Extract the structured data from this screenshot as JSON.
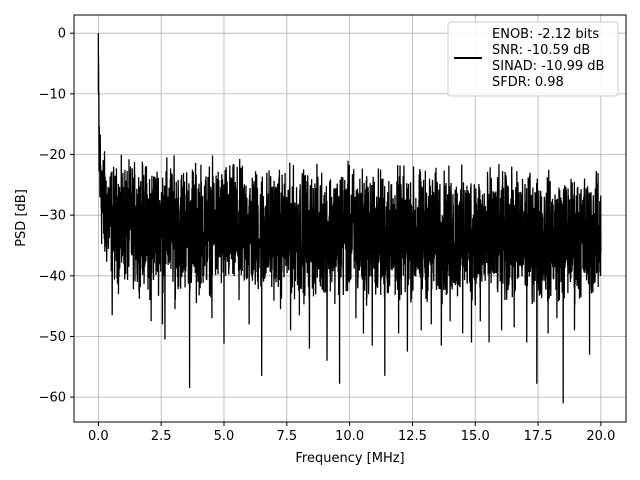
{
  "chart_data": {
    "type": "line",
    "title": "",
    "xlabel": "Frequency [MHz]",
    "ylabel": "PSD [dB]",
    "xlim": [
      -0.97,
      21.0
    ],
    "ylim": [
      -64.1,
      3.0
    ],
    "xticks": [
      0.0,
      2.5,
      5.0,
      7.5,
      10.0,
      12.5,
      15.0,
      17.5,
      20.0
    ],
    "xtick_labels": [
      "0.0",
      "2.5",
      "5.0",
      "7.5",
      "10.0",
      "12.5",
      "15.0",
      "17.5",
      "20.0"
    ],
    "yticks": [
      0,
      -10,
      -20,
      -30,
      -40,
      -50,
      -60
    ],
    "ytick_labels": [
      "0",
      "−10",
      "−20",
      "−30",
      "−40",
      "−50",
      "−60"
    ],
    "grid": true,
    "legend_position": "top-right",
    "line_color": "#000000",
    "series": [
      {
        "legend_lines": [
          "ENOB: -2.12 bits",
          "SNR: -10.59 dB",
          "SINAD: -10.99 dB",
          "SFDR: 0.98"
        ],
        "x": [
          0.0,
          0.02,
          0.05,
          0.1,
          0.15,
          0.2,
          0.3,
          0.4,
          0.5,
          0.6,
          0.75,
          1.0,
          1.25,
          1.5,
          2.0,
          2.5,
          3.0,
          3.5,
          4.0,
          4.5,
          5.0,
          6.0,
          7.0,
          8.0,
          9.0,
          10.0,
          11.0,
          12.0,
          13.0,
          14.0,
          15.0,
          16.0,
          17.0,
          18.0,
          19.0,
          20.0
        ],
        "upper": [
          0.0,
          -1.5,
          -12.0,
          -14.0,
          -16.5,
          -18.0,
          -19.5,
          -20.0,
          -20.5,
          -21.0,
          -21.0,
          -20.5,
          -20.5,
          -20.5,
          -20.5,
          -20.0,
          -20.0,
          -20.5,
          -20.5,
          -20.5,
          -20.5,
          -21.0,
          -21.5,
          -21.5,
          -21.5,
          -21.0,
          -21.5,
          -21.5,
          -21.5,
          -22.0,
          -21.5,
          -22.0,
          -22.0,
          -22.5,
          -22.5,
          -22.5
        ],
        "lower": [
          -23.0,
          -31.0,
          -33.0,
          -35.0,
          -38.0,
          -39.0,
          -40.0,
          -40.0,
          -41.0,
          -42.0,
          -42.0,
          -42.5,
          -42.5,
          -42.5,
          -43.0,
          -43.0,
          -43.5,
          -43.5,
          -43.5,
          -43.5,
          -43.5,
          -44.0,
          -44.0,
          -44.5,
          -44.5,
          -44.5,
          -45.0,
          -45.0,
          -45.0,
          -45.0,
          -45.0,
          -45.0,
          -45.0,
          -45.0,
          -45.0,
          -44.0
        ],
        "spikes": [
          {
            "x": 0.55,
            "y": -46.5
          },
          {
            "x": 0.8,
            "y": -43.0
          },
          {
            "x": 1.55,
            "y": -41.0
          },
          {
            "x": 2.05,
            "y": -44.0
          },
          {
            "x": 2.1,
            "y": -47.5
          },
          {
            "x": 2.55,
            "y": -48.0
          },
          {
            "x": 2.65,
            "y": -50.5
          },
          {
            "x": 3.05,
            "y": -45.5
          },
          {
            "x": 3.63,
            "y": -58.5
          },
          {
            "x": 3.9,
            "y": -44.5
          },
          {
            "x": 4.45,
            "y": -42.0
          },
          {
            "x": 4.52,
            "y": -47.0
          },
          {
            "x": 5.0,
            "y": -51.2
          },
          {
            "x": 5.6,
            "y": -44.0
          },
          {
            "x": 6.0,
            "y": -48.0
          },
          {
            "x": 6.5,
            "y": -56.5
          },
          {
            "x": 7.25,
            "y": -45.5
          },
          {
            "x": 7.65,
            "y": -49.0
          },
          {
            "x": 8.0,
            "y": -46.5
          },
          {
            "x": 8.4,
            "y": -52.0
          },
          {
            "x": 9.1,
            "y": -54.0
          },
          {
            "x": 9.6,
            "y": -57.8
          },
          {
            "x": 10.25,
            "y": -47.0
          },
          {
            "x": 10.55,
            "y": -49.5
          },
          {
            "x": 10.9,
            "y": -51.5
          },
          {
            "x": 11.4,
            "y": -56.5
          },
          {
            "x": 11.95,
            "y": -49.5
          },
          {
            "x": 12.3,
            "y": -52.5
          },
          {
            "x": 12.85,
            "y": -49.0
          },
          {
            "x": 13.25,
            "y": -48.0
          },
          {
            "x": 13.65,
            "y": -51.5
          },
          {
            "x": 14.0,
            "y": -47.5
          },
          {
            "x": 14.5,
            "y": -49.5
          },
          {
            "x": 14.85,
            "y": -51.0
          },
          {
            "x": 15.2,
            "y": -47.5
          },
          {
            "x": 15.55,
            "y": -51.0
          },
          {
            "x": 16.05,
            "y": -49.0
          },
          {
            "x": 16.55,
            "y": -48.5
          },
          {
            "x": 17.05,
            "y": -51.0
          },
          {
            "x": 17.45,
            "y": -57.8
          },
          {
            "x": 17.9,
            "y": -49.5
          },
          {
            "x": 18.25,
            "y": -47.0
          },
          {
            "x": 18.5,
            "y": -61.0
          },
          {
            "x": 18.95,
            "y": -49.0
          },
          {
            "x": 19.55,
            "y": -53.0
          }
        ]
      }
    ]
  }
}
